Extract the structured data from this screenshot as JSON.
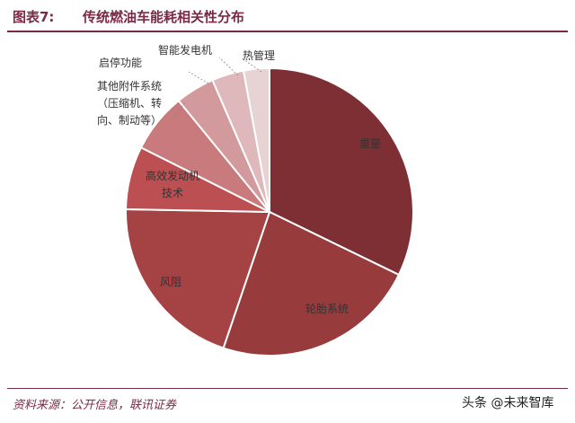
{
  "header": {
    "fig_label": "图表7:",
    "title": "传统燃油车能耗相关性分布"
  },
  "footer": {
    "source": "资料来源：公开信息，联讯证券",
    "watermark": "头条 @未来智库"
  },
  "chart_data": {
    "type": "pie",
    "title": "传统燃油车能耗相关性分布",
    "start_angle_deg": 0,
    "direction": "clockwise",
    "slices": [
      {
        "label_lines": [
          "重量"
        ],
        "value": 32.2,
        "color": "#7e2f34"
      },
      {
        "label_lines": [
          "轮胎系统"
        ],
        "value": 23.0,
        "color": "#973b3c"
      },
      {
        "label_lines": [
          "风阻"
        ],
        "value": 20.1,
        "color": "#a44244"
      },
      {
        "label_lines": [
          "高效发动机",
          "技术"
        ],
        "value": 7.1,
        "color": "#bb4f52"
      },
      {
        "label_lines": [
          "其他附件系统",
          "（压缩机、转",
          "向、制动等）"
        ],
        "value": 6.7,
        "color": "#c97a7d"
      },
      {
        "label_lines": [
          "启停功能"
        ],
        "value": 4.4,
        "color": "#d29a9c"
      },
      {
        "label_lines": [
          "智能发电机"
        ],
        "value": 3.6,
        "color": "#deb8ba"
      },
      {
        "label_lines": [
          "热管理"
        ],
        "value": 2.9,
        "color": "#e8d3d4"
      }
    ]
  }
}
